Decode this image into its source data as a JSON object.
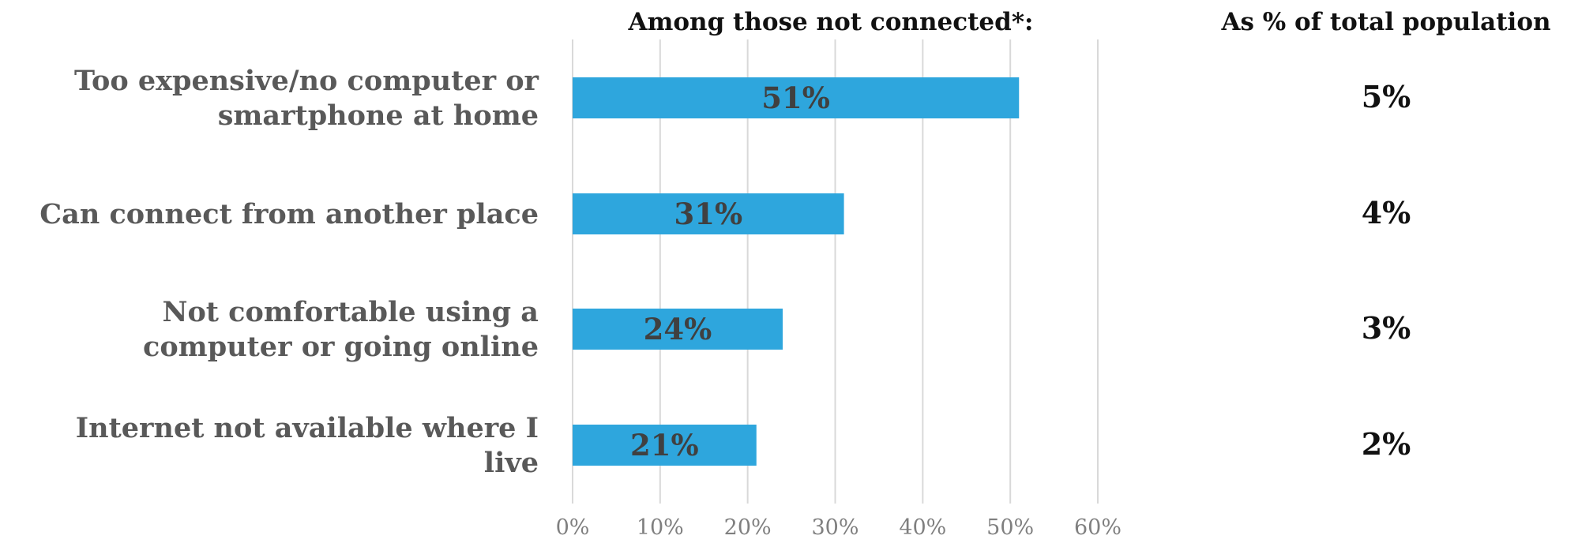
{
  "chart_data": {
    "type": "bar",
    "orientation": "horizontal",
    "header_left": "Among those not connected*:",
    "header_right": "As % of total population",
    "categories": [
      [
        "Too expensive/no computer or",
        "smartphone at home"
      ],
      [
        "Can connect from another place"
      ],
      [
        "Not comfortable using a",
        "computer or going online"
      ],
      [
        "Internet not available where I",
        "live"
      ]
    ],
    "values": [
      51,
      31,
      24,
      21
    ],
    "value_labels": [
      "51%",
      "31%",
      "24%",
      "21%"
    ],
    "population_values": [
      "5%",
      "4%",
      "3%",
      "2%"
    ],
    "xlim": [
      0,
      60
    ],
    "xticks": [
      0,
      10,
      20,
      30,
      40,
      50,
      60
    ],
    "xtick_labels": [
      "0%",
      "10%",
      "20%",
      "30%",
      "40%",
      "50%",
      "60%"
    ],
    "grid": true,
    "colors": {
      "bar": "#2ea6dd",
      "bar_label": "#404040",
      "category_text": "#595959",
      "gridline": "#d9d9d9"
    }
  }
}
